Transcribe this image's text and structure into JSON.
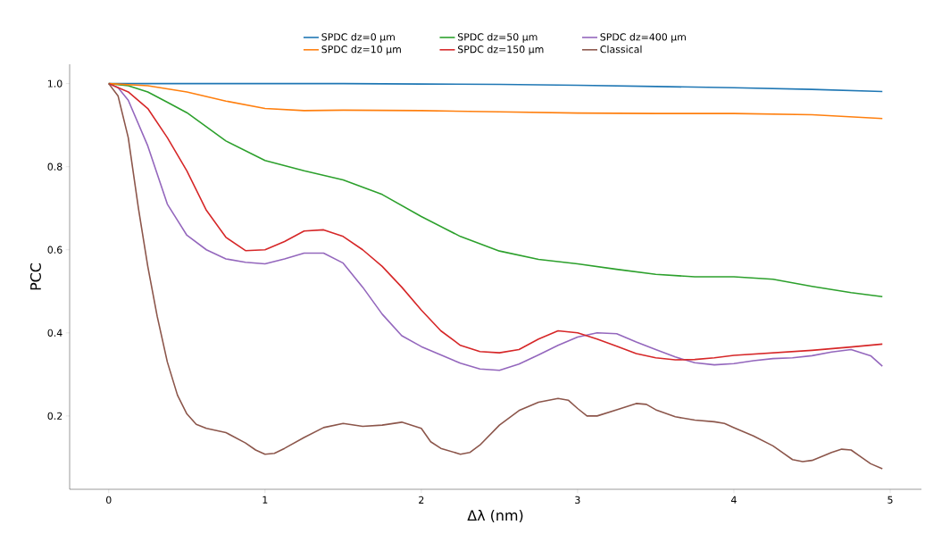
{
  "chart_data": {
    "type": "line",
    "xlabel": "Δλ (nm)",
    "ylabel": "PCC",
    "xlim": [
      -0.25,
      5.2
    ],
    "ylim": [
      0.0235,
      1.0465
    ],
    "xticks": [
      0,
      1,
      2,
      3,
      4,
      5
    ],
    "yticks": [
      0.2,
      0.4,
      0.6,
      0.8,
      {
        "value": 1.0,
        "label": "1.0"
      }
    ],
    "legend": "top",
    "grid": false,
    "marker": "none",
    "line_style": "solid",
    "series": [
      {
        "name": "SPDC dz=0 μm",
        "color": "#1f77b4",
        "x": [
          0,
          0.5,
          1,
          1.5,
          2,
          2.5,
          3,
          3.5,
          4,
          4.5,
          4.95
        ],
        "values": [
          1.0,
          1.0,
          1.0,
          1.0,
          0.999,
          0.998,
          0.996,
          0.993,
          0.99,
          0.986,
          0.981
        ]
      },
      {
        "name": "SPDC dz=10 μm",
        "color": "#ff7f0e",
        "x": [
          0,
          0.25,
          0.5,
          0.75,
          1,
          1.25,
          1.5,
          2,
          2.5,
          3,
          3.5,
          4,
          4.5,
          4.95
        ],
        "values": [
          1.0,
          0.995,
          0.98,
          0.958,
          0.94,
          0.935,
          0.936,
          0.935,
          0.932,
          0.929,
          0.928,
          0.928,
          0.925,
          0.916
        ]
      },
      {
        "name": "SPDC dz=50 μm",
        "color": "#2ca02c",
        "x": [
          0,
          0.125,
          0.25,
          0.375,
          0.5,
          0.75,
          1,
          1.25,
          1.5,
          1.75,
          2,
          2.25,
          2.5,
          2.75,
          3,
          3.25,
          3.5,
          3.75,
          4,
          4.25,
          4.5,
          4.75,
          4.95
        ],
        "values": [
          1.0,
          0.995,
          0.98,
          0.955,
          0.93,
          0.862,
          0.815,
          0.79,
          0.768,
          0.733,
          0.68,
          0.632,
          0.597,
          0.577,
          0.566,
          0.553,
          0.541,
          0.535,
          0.535,
          0.529,
          0.512,
          0.497,
          0.487
        ]
      },
      {
        "name": "SPDC dz=150 μm",
        "color": "#d62728",
        "x": [
          0,
          0.125,
          0.25,
          0.375,
          0.5,
          0.625,
          0.75,
          0.875,
          1,
          1.125,
          1.25,
          1.375,
          1.5,
          1.625,
          1.75,
          1.875,
          2,
          2.125,
          2.25,
          2.375,
          2.5,
          2.625,
          2.75,
          2.875,
          3,
          3.125,
          3.25,
          3.375,
          3.5,
          3.625,
          3.75,
          3.875,
          4,
          4.25,
          4.5,
          4.75,
          4.95
        ],
        "values": [
          1.0,
          0.98,
          0.94,
          0.87,
          0.79,
          0.695,
          0.63,
          0.598,
          0.6,
          0.62,
          0.645,
          0.648,
          0.632,
          0.6,
          0.56,
          0.51,
          0.455,
          0.405,
          0.37,
          0.355,
          0.352,
          0.36,
          0.385,
          0.405,
          0.4,
          0.385,
          0.368,
          0.35,
          0.34,
          0.335,
          0.336,
          0.34,
          0.346,
          0.352,
          0.358,
          0.366,
          0.373
        ]
      },
      {
        "name": "SPDC dz=400 μm",
        "color": "#9467bd",
        "x": [
          0,
          0.06,
          0.125,
          0.25,
          0.375,
          0.5,
          0.625,
          0.75,
          0.875,
          1,
          1.125,
          1.25,
          1.375,
          1.5,
          1.625,
          1.75,
          1.875,
          2,
          2.125,
          2.25,
          2.375,
          2.5,
          2.625,
          2.75,
          2.875,
          3,
          3.125,
          3.25,
          3.375,
          3.5,
          3.625,
          3.75,
          3.875,
          4,
          4.125,
          4.25,
          4.375,
          4.5,
          4.625,
          4.75,
          4.875,
          4.95
        ],
        "values": [
          1.0,
          0.99,
          0.96,
          0.85,
          0.71,
          0.635,
          0.6,
          0.578,
          0.57,
          0.566,
          0.578,
          0.592,
          0.592,
          0.568,
          0.51,
          0.445,
          0.393,
          0.367,
          0.347,
          0.327,
          0.313,
          0.31,
          0.325,
          0.347,
          0.37,
          0.39,
          0.4,
          0.398,
          0.378,
          0.36,
          0.342,
          0.328,
          0.323,
          0.326,
          0.333,
          0.338,
          0.34,
          0.345,
          0.354,
          0.36,
          0.345,
          0.32
        ]
      },
      {
        "name": "Classical",
        "color": "#8c564b",
        "x": [
          0,
          0.06,
          0.125,
          0.19,
          0.25,
          0.31,
          0.375,
          0.44,
          0.5,
          0.56,
          0.625,
          0.75,
          0.875,
          0.94,
          1,
          1.06,
          1.125,
          1.25,
          1.375,
          1.5,
          1.625,
          1.75,
          1.875,
          2,
          2.06,
          2.125,
          2.25,
          2.31,
          2.375,
          2.5,
          2.625,
          2.75,
          2.875,
          2.94,
          3,
          3.06,
          3.125,
          3.25,
          3.375,
          3.44,
          3.5,
          3.625,
          3.75,
          3.875,
          3.94,
          4,
          4.125,
          4.25,
          4.375,
          4.44,
          4.5,
          4.625,
          4.69,
          4.75,
          4.875,
          4.95
        ],
        "values": [
          1.0,
          0.97,
          0.87,
          0.7,
          0.56,
          0.44,
          0.33,
          0.25,
          0.205,
          0.18,
          0.17,
          0.16,
          0.135,
          0.118,
          0.108,
          0.11,
          0.122,
          0.148,
          0.172,
          0.182,
          0.175,
          0.178,
          0.185,
          0.17,
          0.138,
          0.122,
          0.108,
          0.112,
          0.13,
          0.178,
          0.213,
          0.233,
          0.242,
          0.238,
          0.218,
          0.2,
          0.2,
          0.215,
          0.23,
          0.228,
          0.215,
          0.198,
          0.19,
          0.186,
          0.182,
          0.172,
          0.152,
          0.128,
          0.095,
          0.09,
          0.093,
          0.112,
          0.12,
          0.118,
          0.085,
          0.073
        ]
      }
    ]
  }
}
